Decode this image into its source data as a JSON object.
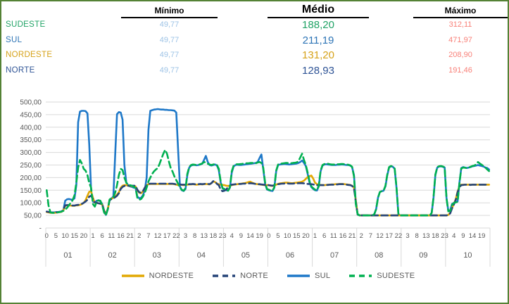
{
  "table": {
    "columns": [
      "Mínimo",
      "Médio",
      "Máximo"
    ],
    "min_value_color": "#9DC3E6",
    "max_value_color": "#F87F77",
    "rows": [
      {
        "label": "SUDESTE",
        "min": "49,77",
        "avg": "188,20",
        "max": "312,11",
        "color": "#21A366"
      },
      {
        "label": "SUL",
        "min": "49,77",
        "avg": "211,19",
        "max": "471,97",
        "color": "#2E75B6"
      },
      {
        "label": "NORDESTE",
        "min": "49,77",
        "avg": "131,20",
        "max": "208,90",
        "color": "#D6A219"
      },
      {
        "label": "NORTE",
        "min": "49,77",
        "avg": "128,93",
        "max": "191,46",
        "color": "#2F5496"
      }
    ]
  },
  "chart_data": {
    "type": "line",
    "title": "",
    "xlabel": "",
    "ylabel": "",
    "ylim": [
      0,
      500
    ],
    "ytick_step": 50,
    "ytick_labels": [
      "-",
      "50,00",
      "100,00",
      "150,00",
      "200,00",
      "250,00",
      "300,00",
      "350,00",
      "400,00",
      "450,00",
      "500,00"
    ],
    "grid": true,
    "legend_position": "bottom",
    "months": [
      {
        "label": "01",
        "hour_ticks": [
          "0",
          "5",
          "10",
          "15",
          "20"
        ]
      },
      {
        "label": "02",
        "hour_ticks": [
          "1",
          "6",
          "11",
          "16",
          "21"
        ]
      },
      {
        "label": "03",
        "hour_ticks": [
          "2",
          "7",
          "12",
          "17",
          "22"
        ]
      },
      {
        "label": "04",
        "hour_ticks": [
          "3",
          "8",
          "13",
          "18",
          "23"
        ]
      },
      {
        "label": "05",
        "hour_ticks": [
          "4",
          "9",
          "14",
          "19"
        ]
      },
      {
        "label": "06",
        "hour_ticks": [
          "0",
          "5",
          "10",
          "15",
          "20"
        ]
      },
      {
        "label": "07",
        "hour_ticks": [
          "1",
          "6",
          "11",
          "16",
          "21"
        ]
      },
      {
        "label": "08",
        "hour_ticks": [
          "2",
          "7",
          "12",
          "17",
          "22"
        ]
      },
      {
        "label": "09",
        "hour_ticks": [
          "3",
          "8",
          "13",
          "18",
          "23"
        ]
      },
      {
        "label": "10",
        "hour_ticks": [
          "4",
          "9",
          "14",
          "19"
        ]
      }
    ],
    "series": [
      {
        "name": "NORDESTE",
        "color": "#E2A803",
        "dash": "solid",
        "values": [
          63,
          62,
          60,
          60,
          60,
          61,
          62,
          63,
          64,
          70,
          88,
          90,
          90,
          89,
          88,
          88,
          90,
          90,
          92,
          95,
          100,
          110,
          128,
          144,
          145,
          120,
          100,
          100,
          98,
          96,
          93,
          70,
          55,
          75,
          112,
          116,
          120,
          125,
          132,
          142,
          160,
          168,
          170,
          170,
          168,
          167,
          166,
          165,
          165,
          150,
          140,
          138,
          145,
          160,
          170,
          174,
          175,
          175,
          175,
          175,
          175,
          175,
          175,
          175,
          175,
          175,
          175,
          175,
          175,
          174,
          172,
          170,
          172,
          171,
          170,
          171,
          172,
          173,
          173,
          174,
          173,
          172,
          173,
          174,
          173,
          174,
          175,
          174,
          173,
          178,
          185,
          182,
          176,
          174,
          172,
          171,
          170,
          168,
          167,
          168,
          170,
          172,
          173,
          174,
          175,
          176,
          177,
          178,
          180,
          182,
          184,
          180,
          177,
          175,
          174,
          173,
          172,
          171,
          170,
          170,
          170,
          168,
          167,
          169,
          172,
          175,
          177,
          178,
          179,
          180,
          180,
          179,
          178,
          178,
          179,
          180,
          181,
          182,
          184,
          188,
          195,
          202,
          206,
          208,
          196,
          180,
          174,
          172,
          171,
          170,
          170,
          171,
          172,
          172,
          173,
          173,
          174,
          174,
          175,
          175,
          175,
          174,
          173,
          172,
          171,
          168,
          160,
          110,
          55,
          50,
          50,
          50,
          50,
          50,
          50,
          50,
          50,
          50,
          50,
          50,
          50,
          50,
          50,
          50,
          50,
          50,
          50,
          50,
          50,
          50,
          50,
          50,
          50,
          50,
          50,
          50,
          50,
          50,
          50,
          50,
          50,
          50,
          50,
          50,
          50,
          50,
          50,
          50,
          50,
          50,
          50,
          50,
          50,
          50,
          50,
          50,
          50,
          52,
          60,
          80,
          95,
          115,
          145,
          165,
          172,
          172,
          172,
          172,
          172,
          172,
          172,
          172,
          172,
          172,
          172,
          172,
          172,
          172,
          172,
          172
        ]
      },
      {
        "name": "NORTE",
        "color": "#264478",
        "dash": "dashed",
        "values": [
          65,
          64,
          62,
          61,
          61,
          62,
          63,
          64,
          65,
          72,
          90,
          91,
          91,
          90,
          89,
          89,
          91,
          92,
          93,
          96,
          100,
          105,
          112,
          125,
          128,
          115,
          102,
          100,
          98,
          97,
          94,
          68,
          53,
          74,
          110,
          115,
          118,
          122,
          128,
          138,
          155,
          163,
          167,
          168,
          168,
          168,
          168,
          168,
          168,
          152,
          142,
          140,
          146,
          160,
          170,
          175,
          176,
          176,
          176,
          176,
          176,
          176,
          176,
          176,
          176,
          176,
          176,
          176,
          176,
          175,
          173,
          172,
          173,
          172,
          172,
          172,
          173,
          174,
          174,
          175,
          174,
          173,
          174,
          175,
          174,
          175,
          176,
          175,
          174,
          178,
          186,
          184,
          175,
          170,
          152,
          146,
          148,
          153,
          162,
          168,
          172,
          173,
          174,
          174,
          175,
          175,
          176,
          176,
          177,
          177,
          178,
          177,
          176,
          175,
          174,
          174,
          173,
          172,
          171,
          170,
          170,
          169,
          168,
          170,
          172,
          174,
          175,
          176,
          176,
          177,
          177,
          176,
          176,
          176,
          177,
          177,
          178,
          178,
          178,
          177,
          176,
          175,
          175,
          174,
          173,
          171,
          170,
          170,
          170,
          170,
          170,
          171,
          171,
          172,
          172,
          172,
          173,
          173,
          174,
          174,
          174,
          173,
          172,
          171,
          170,
          167,
          158,
          105,
          53,
          50,
          50,
          50,
          50,
          50,
          50,
          50,
          50,
          50,
          50,
          50,
          50,
          50,
          50,
          50,
          50,
          50,
          50,
          50,
          50,
          50,
          50,
          50,
          50,
          50,
          50,
          50,
          50,
          50,
          50,
          50,
          50,
          50,
          50,
          50,
          50,
          50,
          50,
          50,
          50,
          50,
          50,
          50,
          50,
          50,
          50,
          50,
          50,
          52,
          58,
          78,
          93,
          112,
          142,
          162,
          170,
          171,
          172,
          172,
          172,
          171,
          172,
          172,
          172,
          172,
          172,
          172,
          172,
          172,
          172,
          172
        ]
      },
      {
        "name": "SUL",
        "color": "#1E78C8",
        "dash": "solid",
        "values": [
          65,
          63,
          62,
          62,
          62,
          63,
          63,
          64,
          66,
          70,
          108,
          114,
          115,
          113,
          112,
          118,
          170,
          420,
          462,
          465,
          465,
          464,
          455,
          330,
          150,
          105,
          100,
          108,
          110,
          106,
          95,
          70,
          52,
          75,
          112,
          118,
          125,
          290,
          452,
          460,
          458,
          430,
          250,
          180,
          170,
          165,
          163,
          160,
          160,
          125,
          118,
          120,
          130,
          150,
          200,
          390,
          465,
          468,
          470,
          471,
          472,
          471,
          470,
          470,
          469,
          469,
          468,
          468,
          467,
          466,
          458,
          310,
          165,
          150,
          147,
          155,
          210,
          240,
          248,
          250,
          250,
          249,
          250,
          252,
          255,
          270,
          286,
          262,
          250,
          248,
          250,
          252,
          248,
          230,
          180,
          158,
          152,
          150,
          149,
          160,
          220,
          245,
          250,
          251,
          250,
          250,
          251,
          252,
          253,
          254,
          255,
          256,
          257,
          258,
          262,
          278,
          292,
          235,
          175,
          153,
          150,
          148,
          147,
          160,
          225,
          250,
          252,
          253,
          254,
          254,
          253,
          252,
          253,
          254,
          255,
          256,
          258,
          262,
          268,
          258,
          246,
          215,
          180,
          162,
          155,
          150,
          149,
          165,
          225,
          248,
          252,
          253,
          252,
          251,
          250,
          250,
          250,
          251,
          251,
          252,
          252,
          251,
          250,
          250,
          248,
          242,
          210,
          100,
          55,
          50,
          50,
          50,
          50,
          50,
          50,
          50,
          50,
          55,
          75,
          120,
          143,
          146,
          148,
          165,
          210,
          240,
          245,
          243,
          235,
          160,
          55,
          50,
          50,
          50,
          50,
          50,
          50,
          50,
          50,
          50,
          50,
          50,
          50,
          50,
          50,
          50,
          50,
          50,
          60,
          120,
          210,
          240,
          244,
          245,
          243,
          240,
          120,
          68,
          70,
          95,
          100,
          103,
          105,
          180,
          238,
          242,
          240,
          238,
          240,
          242,
          245,
          246,
          248,
          250,
          248,
          246,
          244,
          240,
          238,
          232
        ]
      },
      {
        "name": "SUDESTE",
        "color": "#00B050",
        "dash": "dashed",
        "values": [
          150,
          90,
          62,
          60,
          60,
          60,
          62,
          63,
          65,
          68,
          73,
          80,
          90,
          100,
          110,
          130,
          180,
          240,
          270,
          256,
          235,
          228,
          210,
          178,
          160,
          95,
          85,
          105,
          110,
          108,
          90,
          62,
          50,
          75,
          113,
          119,
          122,
          140,
          170,
          210,
          235,
          230,
          200,
          180,
          172,
          170,
          168,
          164,
          158,
          120,
          112,
          115,
          125,
          140,
          160,
          185,
          200,
          215,
          225,
          232,
          238,
          255,
          275,
          295,
          310,
          295,
          265,
          238,
          224,
          205,
          190,
          176,
          160,
          152,
          148,
          158,
          215,
          242,
          250,
          252,
          251,
          250,
          251,
          253,
          256,
          262,
          260,
          255,
          252,
          250,
          252,
          254,
          250,
          235,
          185,
          158,
          155,
          150,
          148,
          162,
          225,
          248,
          252,
          253,
          253,
          254,
          255,
          256,
          257,
          257,
          258,
          258,
          258,
          257,
          260,
          262,
          258,
          240,
          180,
          155,
          152,
          149,
          148,
          162,
          228,
          252,
          255,
          256,
          257,
          258,
          258,
          257,
          257,
          258,
          259,
          260,
          265,
          280,
          295,
          270,
          250,
          220,
          185,
          165,
          158,
          152,
          150,
          168,
          228,
          250,
          254,
          256,
          255,
          253,
          252,
          252,
          252,
          253,
          253,
          254,
          254,
          253,
          252,
          251,
          249,
          243,
          205,
          95,
          55,
          50,
          50,
          50,
          50,
          50,
          50,
          50,
          50,
          55,
          75,
          120,
          143,
          146,
          148,
          168,
          212,
          242,
          246,
          244,
          236,
          162,
          55,
          50,
          50,
          50,
          50,
          50,
          50,
          50,
          50,
          50,
          50,
          50,
          50,
          50,
          50,
          50,
          50,
          50,
          60,
          122,
          212,
          242,
          245,
          246,
          244,
          241,
          118,
          66,
          68,
          93,
          99,
          102,
          104,
          178,
          236,
          240,
          239,
          238,
          240,
          243,
          246,
          248,
          252,
          262,
          256,
          251,
          246,
          240,
          232,
          226
        ]
      }
    ]
  }
}
